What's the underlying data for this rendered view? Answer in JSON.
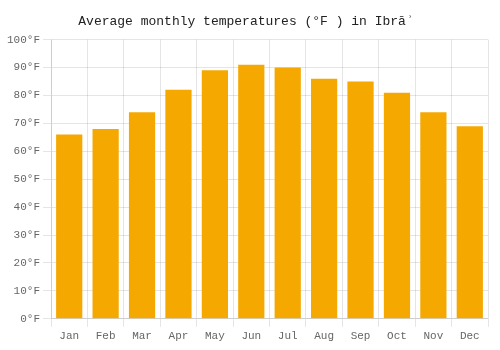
{
  "chart_data": {
    "type": "bar",
    "title": "Average monthly temperatures (°F ) in Ibrāʾ",
    "categories": [
      "Jan",
      "Feb",
      "Mar",
      "Apr",
      "May",
      "Jun",
      "Jul",
      "Aug",
      "Sep",
      "Oct",
      "Nov",
      "Dec"
    ],
    "values": [
      66,
      68,
      74,
      82,
      89,
      91,
      90,
      86,
      85,
      81,
      74,
      69
    ],
    "color": "#F5A800",
    "ylim": [
      0,
      100
    ],
    "yticks": [
      {
        "value": 0,
        "label": "0°F"
      },
      {
        "value": 10,
        "label": "10°F"
      },
      {
        "value": 20,
        "label": "20°F"
      },
      {
        "value": 30,
        "label": "30°F"
      },
      {
        "value": 40,
        "label": "40°F"
      },
      {
        "value": 50,
        "label": "50°F"
      },
      {
        "value": 60,
        "label": "60°F"
      },
      {
        "value": 70,
        "label": "70°F"
      },
      {
        "value": 80,
        "label": "80°F"
      },
      {
        "value": 90,
        "label": "90°F"
      },
      {
        "value": 100,
        "label": "100°F"
      }
    ],
    "grid": true
  }
}
